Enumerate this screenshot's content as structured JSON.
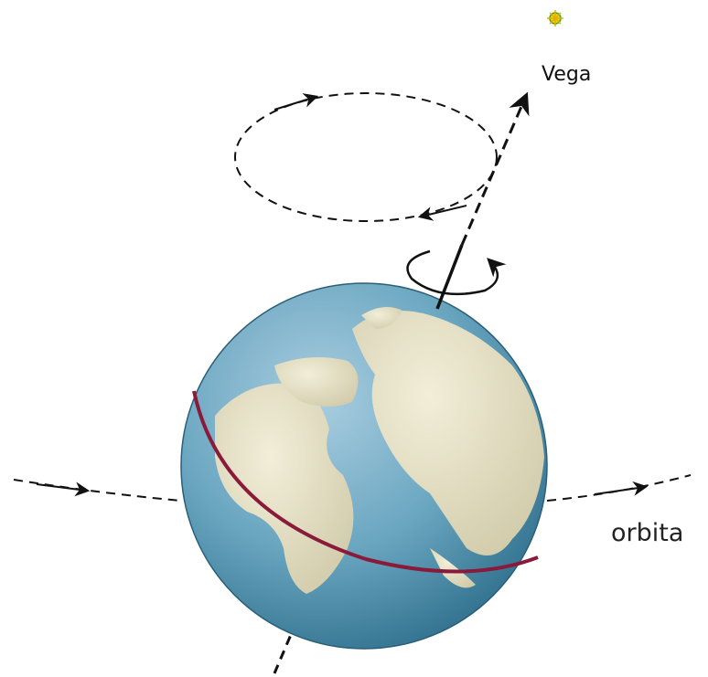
{
  "labels": {
    "star": "Vega",
    "orbit": "orbita"
  }
}
